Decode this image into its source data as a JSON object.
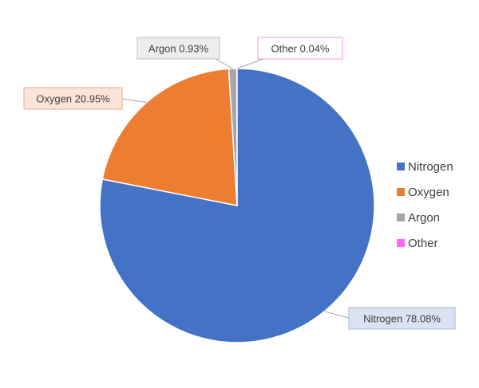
{
  "chart_data": {
    "type": "pie",
    "categories": [
      "Nitrogen",
      "Oxygen",
      "Argon",
      "Other"
    ],
    "values": [
      78.08,
      20.95,
      0.93,
      0.04
    ],
    "colors": [
      "#4472c4",
      "#ed7d31",
      "#a5a5a5",
      "#ff66ff"
    ],
    "data_labels": [
      "Nitrogen  78.08%",
      "Oxygen 20.95%",
      "Argon  0.93%",
      "Other  0.04%"
    ],
    "legend": {
      "position": "right",
      "entries": [
        "Nitrogen",
        "Oxygen",
        "Argon",
        "Other"
      ]
    }
  }
}
